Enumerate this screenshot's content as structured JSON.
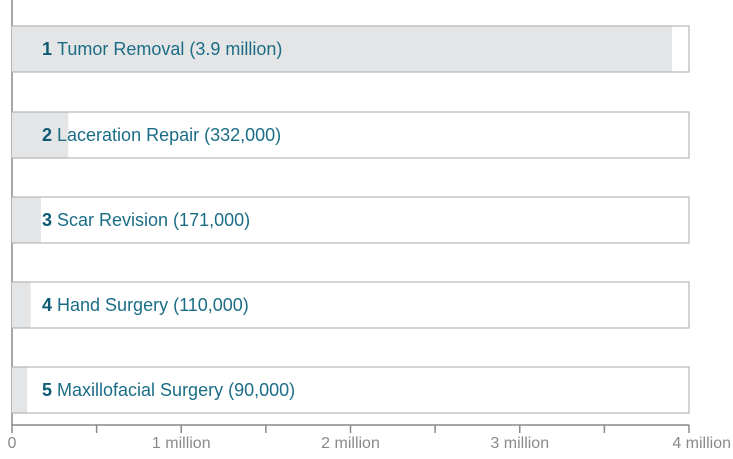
{
  "chart_data": {
    "type": "bar",
    "orientation": "horizontal",
    "ranks": [
      1,
      2,
      3,
      4,
      5
    ],
    "categories": [
      "Tumor Removal (3.9 million)",
      "Laceration Repair (332,000)",
      "Scar Revision (171,000)",
      "Hand Surgery (110,000)",
      "Maxillofacial Surgery (90,000)"
    ],
    "values": [
      3900000,
      332000,
      171000,
      110000,
      90000
    ],
    "color": "#e4e5e6",
    "xlim": [
      0,
      4000000
    ],
    "xticks": [
      0,
      {
        "value": 1000000,
        "label": "1 million"
      },
      {
        "value": 2000000,
        "label": "2 million"
      },
      {
        "value": 3000000,
        "label": "3 million"
      },
      {
        "value": 4000000,
        "label": "4 million"
      }
    ],
    "xminorticks": [
      500000,
      1500000,
      2500000,
      3500000
    ]
  }
}
